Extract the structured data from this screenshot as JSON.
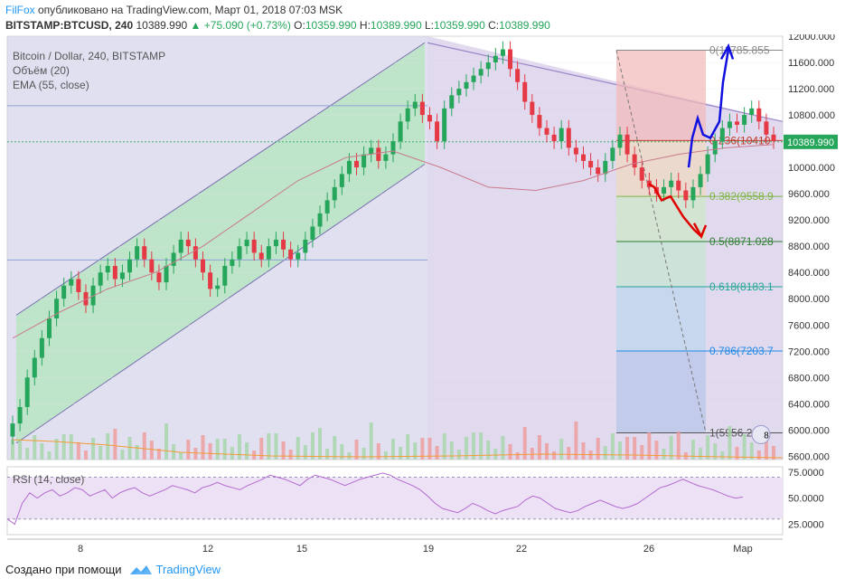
{
  "header": {
    "brand": "FilFox",
    "published": " опубликовано на TradingView.com, Март 01, 2018 07:03 MSK",
    "symbol": "BITSTAMP:BTCUSD, 240",
    "last": "10389.990",
    "change": "▲ +75.090 (+0.73%)",
    "o_label": "O:",
    "o": "10359.990",
    "h_label": "H:",
    "h": "10389.990",
    "l_label": "L:",
    "l": "10359.990",
    "c_label": "C:",
    "c": "10389.990"
  },
  "legend": {
    "title": "Bitcoin / Dollar, 240, BITSTAMP",
    "volume": "Объём (20)",
    "ema": "EMA (55, close)"
  },
  "rsi_label": "RSI (14, close)",
  "footer": {
    "made_with": "Создано при помощи",
    "tv": "TradingView"
  },
  "colors": {
    "up": "#26a65b",
    "down": "#e53946",
    "channel_green": "#b7e4c2",
    "channel_purple": "#d7cdea",
    "fib_red": "#f4c7c7",
    "fib_blue": "#b9c9ec",
    "grid": "#e6e6e6"
  },
  "chart_data": [
    {
      "type": "candlestick",
      "title": "Bitcoin / Dollar, 240, BITSTAMP",
      "x_ticks": [
        "8",
        "12",
        "15",
        "19",
        "22",
        "26",
        "Мар"
      ],
      "y_ticks": [
        "12000.000",
        "11600.000",
        "11200.000",
        "10800.000",
        "10400.000",
        "10000.000",
        "9600.000",
        "9200.000",
        "8800.000",
        "8400.000",
        "8000.000",
        "7600.000",
        "7200.000",
        "6800.000",
        "6400.000",
        "6000.000",
        "5600.000"
      ],
      "ylim": [
        5550,
        12000
      ],
      "last_price_label": "10389.990",
      "ohlc_close": [
        6100,
        6350,
        6800,
        7100,
        7400,
        7700,
        8000,
        8200,
        8300,
        8100,
        7900,
        8200,
        8400,
        8500,
        8300,
        8400,
        8600,
        8800,
        8600,
        8400,
        8250,
        8500,
        8700,
        8900,
        8800,
        8600,
        8400,
        8150,
        8200,
        8500,
        8600,
        8800,
        8900,
        8700,
        8600,
        8800,
        8900,
        8750,
        8600,
        8700,
        8900,
        9100,
        9300,
        9500,
        9700,
        9900,
        10100,
        10000,
        10200,
        10300,
        10100,
        10200,
        10400,
        10700,
        10900,
        11000,
        10800,
        10700,
        10400,
        10900,
        11100,
        11200,
        11300,
        11400,
        11500,
        11600,
        11700,
        11800,
        11500,
        11300,
        11000,
        10800,
        10600,
        10500,
        10400,
        10600,
        10300,
        10200,
        10100,
        10000,
        9900,
        10100,
        10300,
        10500,
        10200,
        10000,
        9800,
        9700,
        9600,
        9700,
        9800,
        9650,
        9500,
        9700,
        9900,
        10200,
        10400,
        10600,
        10700,
        10650,
        10800,
        10900,
        10700,
        10500,
        10400
      ],
      "ema_55": [
        7400,
        7800,
        8150,
        8400,
        8800,
        9300,
        9800,
        10150,
        10250,
        10000,
        9700,
        9650,
        9800,
        10050,
        10200,
        10300,
        10350
      ],
      "volume_ticks": [],
      "fibonacci": [
        {
          "level": "0",
          "label": "0(11785.855",
          "value": 11785.855
        },
        {
          "level": "0.236",
          "label": "0.236(10410",
          "value": 10410
        },
        {
          "level": "0.382",
          "label": "0.382(9558.9",
          "value": 9558.9
        },
        {
          "level": "0.5",
          "label": "0.5(8871.028",
          "value": 8871.028
        },
        {
          "level": "0.618",
          "label": "0.618(8183.1",
          "value": 8183.1
        },
        {
          "level": "0.786",
          "label": "0.786(7203.7",
          "value": 7203.7
        },
        {
          "level": "1",
          "label": "1(5956.201",
          "value": 5956.201
        }
      ],
      "badge": "8"
    },
    {
      "type": "line",
      "title": "RSI (14, close)",
      "y_ticks": [
        "75.0000",
        "50.0000",
        "25.0000"
      ],
      "ylim": [
        15,
        80
      ],
      "values": [
        30,
        25,
        45,
        55,
        50,
        55,
        58,
        52,
        55,
        60,
        58,
        52,
        55,
        58,
        50,
        55,
        58,
        60,
        55,
        52,
        55,
        58,
        62,
        60,
        58,
        55,
        60,
        62,
        65,
        62,
        60,
        58,
        62,
        65,
        68,
        72,
        70,
        68,
        65,
        62,
        68,
        72,
        70,
        68,
        65,
        62,
        65,
        68,
        70,
        72,
        74,
        72,
        68,
        65,
        62,
        58,
        52,
        45,
        40,
        38,
        36,
        40,
        45,
        42,
        38,
        35,
        38,
        40,
        42,
        48,
        52,
        50,
        45,
        40,
        38,
        36,
        38,
        42,
        45,
        48,
        45,
        42,
        40,
        42,
        45,
        50,
        55,
        60,
        62,
        65,
        68,
        65,
        62,
        60,
        58,
        55,
        52,
        50,
        51
      ]
    }
  ]
}
